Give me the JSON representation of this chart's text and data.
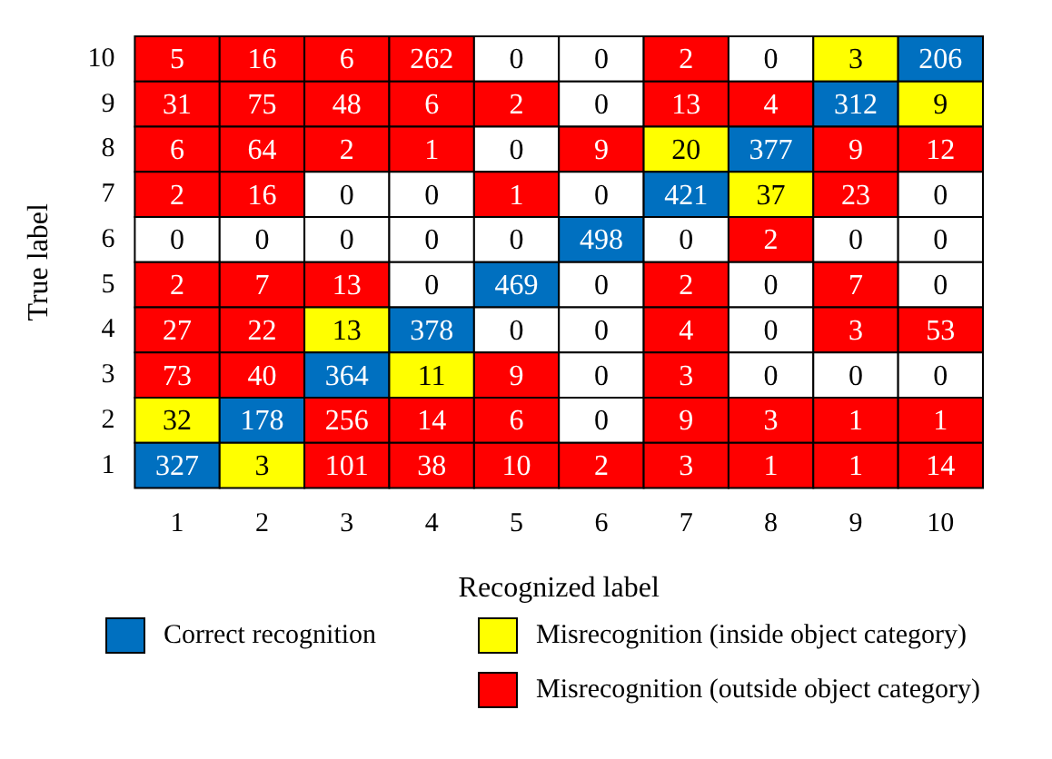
{
  "chart_data": {
    "type": "heatmap",
    "xlabel": "Recognized label",
    "ylabel": "True label",
    "categories": [
      "1",
      "2",
      "3",
      "4",
      "5",
      "6",
      "7",
      "8",
      "9",
      "10"
    ],
    "y_categories": [
      "10",
      "9",
      "8",
      "7",
      "6",
      "5",
      "4",
      "3",
      "2",
      "1"
    ],
    "cells": [
      [
        5,
        16,
        6,
        262,
        0,
        0,
        2,
        0,
        3,
        206
      ],
      [
        31,
        75,
        48,
        6,
        2,
        0,
        13,
        4,
        312,
        9
      ],
      [
        6,
        64,
        2,
        1,
        0,
        9,
        20,
        377,
        9,
        12
      ],
      [
        2,
        16,
        0,
        0,
        1,
        0,
        421,
        37,
        23,
        0
      ],
      [
        0,
        0,
        0,
        0,
        0,
        498,
        0,
        2,
        0,
        0
      ],
      [
        2,
        7,
        13,
        0,
        469,
        0,
        2,
        0,
        7,
        0
      ],
      [
        27,
        22,
        13,
        378,
        0,
        0,
        4,
        0,
        3,
        53
      ],
      [
        73,
        40,
        364,
        11,
        9,
        0,
        3,
        0,
        0,
        0
      ],
      [
        32,
        178,
        256,
        14,
        6,
        0,
        9,
        3,
        1,
        1
      ],
      [
        327,
        3,
        101,
        38,
        10,
        2,
        3,
        1,
        1,
        14
      ]
    ],
    "colors": [
      [
        "#ff0000",
        "#ff0000",
        "#ff0000",
        "#ff0000",
        "#ffffff",
        "#ffffff",
        "#ff0000",
        "#ffffff",
        "#ffff00",
        "#0070c0"
      ],
      [
        "#ff0000",
        "#ff0000",
        "#ff0000",
        "#ff0000",
        "#ff0000",
        "#ffffff",
        "#ff0000",
        "#ff0000",
        "#0070c0",
        "#ffff00"
      ],
      [
        "#ff0000",
        "#ff0000",
        "#ff0000",
        "#ff0000",
        "#ffffff",
        "#ff0000",
        "#ffff00",
        "#0070c0",
        "#ff0000",
        "#ff0000"
      ],
      [
        "#ff0000",
        "#ff0000",
        "#ffffff",
        "#ffffff",
        "#ff0000",
        "#ffffff",
        "#0070c0",
        "#ffff00",
        "#ff0000",
        "#ffffff"
      ],
      [
        "#ffffff",
        "#ffffff",
        "#ffffff",
        "#ffffff",
        "#ffffff",
        "#0070c0",
        "#ffffff",
        "#ff0000",
        "#ffffff",
        "#ffffff"
      ],
      [
        "#ff0000",
        "#ff0000",
        "#ff0000",
        "#ffffff",
        "#0070c0",
        "#ffffff",
        "#ff0000",
        "#ffffff",
        "#ff0000",
        "#ffffff"
      ],
      [
        "#ff0000",
        "#ff0000",
        "#ffff00",
        "#0070c0",
        "#ffffff",
        "#ffffff",
        "#ff0000",
        "#ffffff",
        "#ff0000",
        "#ff0000"
      ],
      [
        "#ff0000",
        "#ff0000",
        "#0070c0",
        "#ffff00",
        "#ff0000",
        "#ffffff",
        "#ff0000",
        "#ffffff",
        "#ffffff",
        "#ffffff"
      ],
      [
        "#ffff00",
        "#0070c0",
        "#ff0000",
        "#ff0000",
        "#ff0000",
        "#ffffff",
        "#ff0000",
        "#ff0000",
        "#ff0000",
        "#ff0000"
      ],
      [
        "#0070c0",
        "#ffff00",
        "#ff0000",
        "#ff0000",
        "#ff0000",
        "#ff0000",
        "#ff0000",
        "#ff0000",
        "#ff0000",
        "#ff0000"
      ]
    ],
    "annotations": [
      "Correct recognition",
      "Misrecognition (inside object category)",
      "Misrecognition (outside object category)"
    ],
    "data_labels": true
  }
}
